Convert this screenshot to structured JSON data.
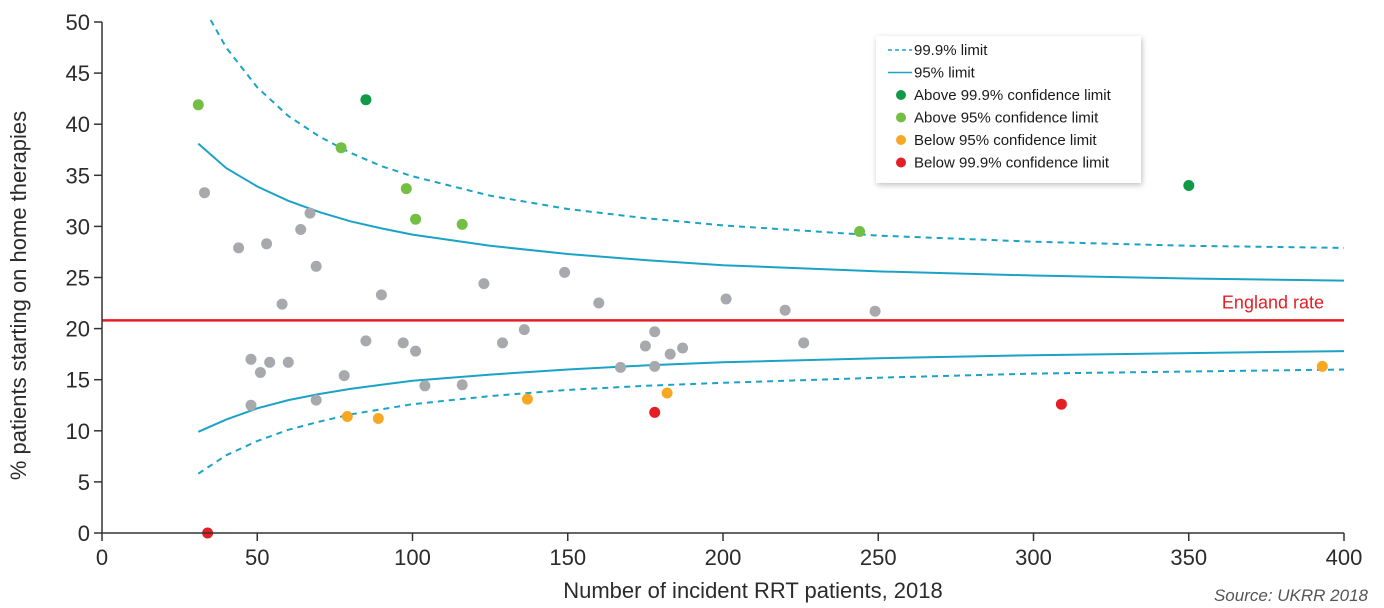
{
  "chart_data": {
    "type": "scatter",
    "title": "",
    "xlabel": "Number of incident RRT patients, 2018",
    "ylabel": "% patients starting on home therapies",
    "xlim": [
      0,
      400
    ],
    "ylim": [
      0,
      50
    ],
    "x_ticks": [
      "0",
      "50",
      "100",
      "150",
      "200",
      "250",
      "300",
      "350",
      "400"
    ],
    "y_ticks": [
      "0",
      "5",
      "10",
      "15",
      "20",
      "25",
      "30",
      "35",
      "40",
      "45",
      "50"
    ],
    "grid": false,
    "legend_position": "top-right",
    "source": "Source: UKRR 2018",
    "reference_line": {
      "label": "England rate",
      "value": 20.8,
      "color": "#e31e24"
    },
    "limit_lines": {
      "color": "#1ba3c6",
      "limit_999": {
        "name": "99.9% limit",
        "style": "dashed",
        "upper": [
          [
            35,
            50.2
          ],
          [
            40,
            47.5
          ],
          [
            50,
            43.6
          ],
          [
            60,
            40.8
          ],
          [
            70,
            38.8
          ],
          [
            80,
            37.2
          ],
          [
            90,
            35.9
          ],
          [
            100,
            34.9
          ],
          [
            125,
            33.0
          ],
          [
            150,
            31.7
          ],
          [
            175,
            30.8
          ],
          [
            200,
            30.1
          ],
          [
            250,
            29.1
          ],
          [
            300,
            28.5
          ],
          [
            350,
            28.1
          ],
          [
            400,
            27.9
          ]
        ],
        "lower": [
          [
            31,
            5.8
          ],
          [
            40,
            7.6
          ],
          [
            50,
            9.0
          ],
          [
            60,
            10.1
          ],
          [
            70,
            10.9
          ],
          [
            80,
            11.6
          ],
          [
            90,
            12.1
          ],
          [
            100,
            12.6
          ],
          [
            125,
            13.4
          ],
          [
            150,
            14.0
          ],
          [
            175,
            14.4
          ],
          [
            200,
            14.7
          ],
          [
            250,
            15.2
          ],
          [
            300,
            15.6
          ],
          [
            350,
            15.8
          ],
          [
            400,
            16.0
          ]
        ]
      },
      "limit_95": {
        "name": "95% limit",
        "style": "solid",
        "upper": [
          [
            31,
            38.1
          ],
          [
            40,
            35.7
          ],
          [
            50,
            33.9
          ],
          [
            60,
            32.5
          ],
          [
            70,
            31.4
          ],
          [
            80,
            30.5
          ],
          [
            90,
            29.8
          ],
          [
            100,
            29.2
          ],
          [
            125,
            28.1
          ],
          [
            150,
            27.3
          ],
          [
            175,
            26.7
          ],
          [
            200,
            26.2
          ],
          [
            250,
            25.6
          ],
          [
            300,
            25.2
          ],
          [
            350,
            24.9
          ],
          [
            400,
            24.7
          ]
        ],
        "lower": [
          [
            31,
            9.9
          ],
          [
            40,
            11.1
          ],
          [
            50,
            12.2
          ],
          [
            60,
            13.0
          ],
          [
            70,
            13.6
          ],
          [
            80,
            14.1
          ],
          [
            90,
            14.5
          ],
          [
            100,
            14.9
          ],
          [
            125,
            15.5
          ],
          [
            150,
            16.0
          ],
          [
            175,
            16.4
          ],
          [
            200,
            16.7
          ],
          [
            250,
            17.1
          ],
          [
            300,
            17.4
          ],
          [
            350,
            17.6
          ],
          [
            400,
            17.8
          ]
        ]
      }
    },
    "series": [
      {
        "name": "Above 99.9% confidence limit",
        "color": "#109a48",
        "points": [
          [
            85,
            42.4
          ],
          [
            350,
            34.0
          ]
        ]
      },
      {
        "name": "Above 95% confidence limit",
        "color": "#72bf44",
        "points": [
          [
            31,
            41.9
          ],
          [
            77,
            37.7
          ],
          [
            98,
            33.7
          ],
          [
            101,
            30.7
          ],
          [
            116,
            30.2
          ],
          [
            244,
            29.5
          ]
        ]
      },
      {
        "name": "Below 95% confidence limit",
        "color": "#f7a823",
        "points": [
          [
            79,
            11.4
          ],
          [
            89,
            11.2
          ],
          [
            137,
            13.1
          ],
          [
            182,
            13.7
          ],
          [
            393,
            16.3
          ]
        ]
      },
      {
        "name": "Below 99.9% confidence limit",
        "color": "#e31e24",
        "points": [
          [
            34,
            0.0
          ],
          [
            178,
            11.8
          ],
          [
            309,
            12.6
          ]
        ]
      },
      {
        "name": "",
        "color": "#a7a9ac",
        "points": [
          [
            33,
            33.3
          ],
          [
            44,
            27.9
          ],
          [
            53,
            28.3
          ],
          [
            64,
            29.7
          ],
          [
            67,
            31.3
          ],
          [
            69,
            26.1
          ],
          [
            58,
            22.4
          ],
          [
            48,
            17.0
          ],
          [
            51,
            15.7
          ],
          [
            54,
            16.7
          ],
          [
            60,
            16.7
          ],
          [
            48,
            12.5
          ],
          [
            69,
            13.0
          ],
          [
            78,
            15.4
          ],
          [
            85,
            18.8
          ],
          [
            90,
            23.3
          ],
          [
            97,
            18.6
          ],
          [
            101,
            17.8
          ],
          [
            104,
            14.4
          ],
          [
            116,
            14.5
          ],
          [
            123,
            24.4
          ],
          [
            129,
            18.6
          ],
          [
            136,
            19.9
          ],
          [
            149,
            25.5
          ],
          [
            160,
            22.5
          ],
          [
            167,
            16.2
          ],
          [
            175,
            18.3
          ],
          [
            178,
            19.7
          ],
          [
            178,
            16.3
          ],
          [
            183,
            17.5
          ],
          [
            187,
            18.1
          ],
          [
            201,
            22.9
          ],
          [
            220,
            21.8
          ],
          [
            226,
            18.6
          ],
          [
            249,
            21.7
          ]
        ]
      }
    ]
  }
}
